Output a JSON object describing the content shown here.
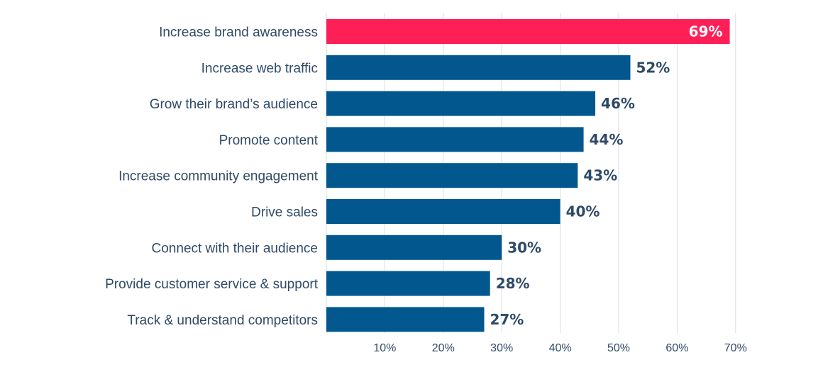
{
  "chart_data": {
    "type": "bar",
    "orientation": "horizontal",
    "categories": [
      "Increase brand awareness",
      "Increase web traffic",
      "Grow their brand’s audience",
      "Promote content",
      "Increase community engagement",
      "Drive sales",
      "Connect with their audience",
      "Provide customer service & support",
      "Track & understand competitors"
    ],
    "values": [
      69,
      52,
      46,
      44,
      43,
      40,
      30,
      28,
      27
    ],
    "value_labels": [
      "69%",
      "52%",
      "46%",
      "44%",
      "43%",
      "40%",
      "30%",
      "28%",
      "27%"
    ],
    "highlight_index": 0,
    "x_ticks": [
      10,
      20,
      30,
      40,
      50,
      60,
      70
    ],
    "x_tick_labels": [
      "10%",
      "20%",
      "30%",
      "40%",
      "50%",
      "60%",
      "70%"
    ],
    "xlim": [
      0,
      70
    ],
    "grid": true,
    "colors": {
      "bar": "#02578f",
      "highlight": "#ff1f57",
      "label": "#2f4a68",
      "highlight_label": "#ffffff",
      "grid": "#d9dde2"
    }
  }
}
